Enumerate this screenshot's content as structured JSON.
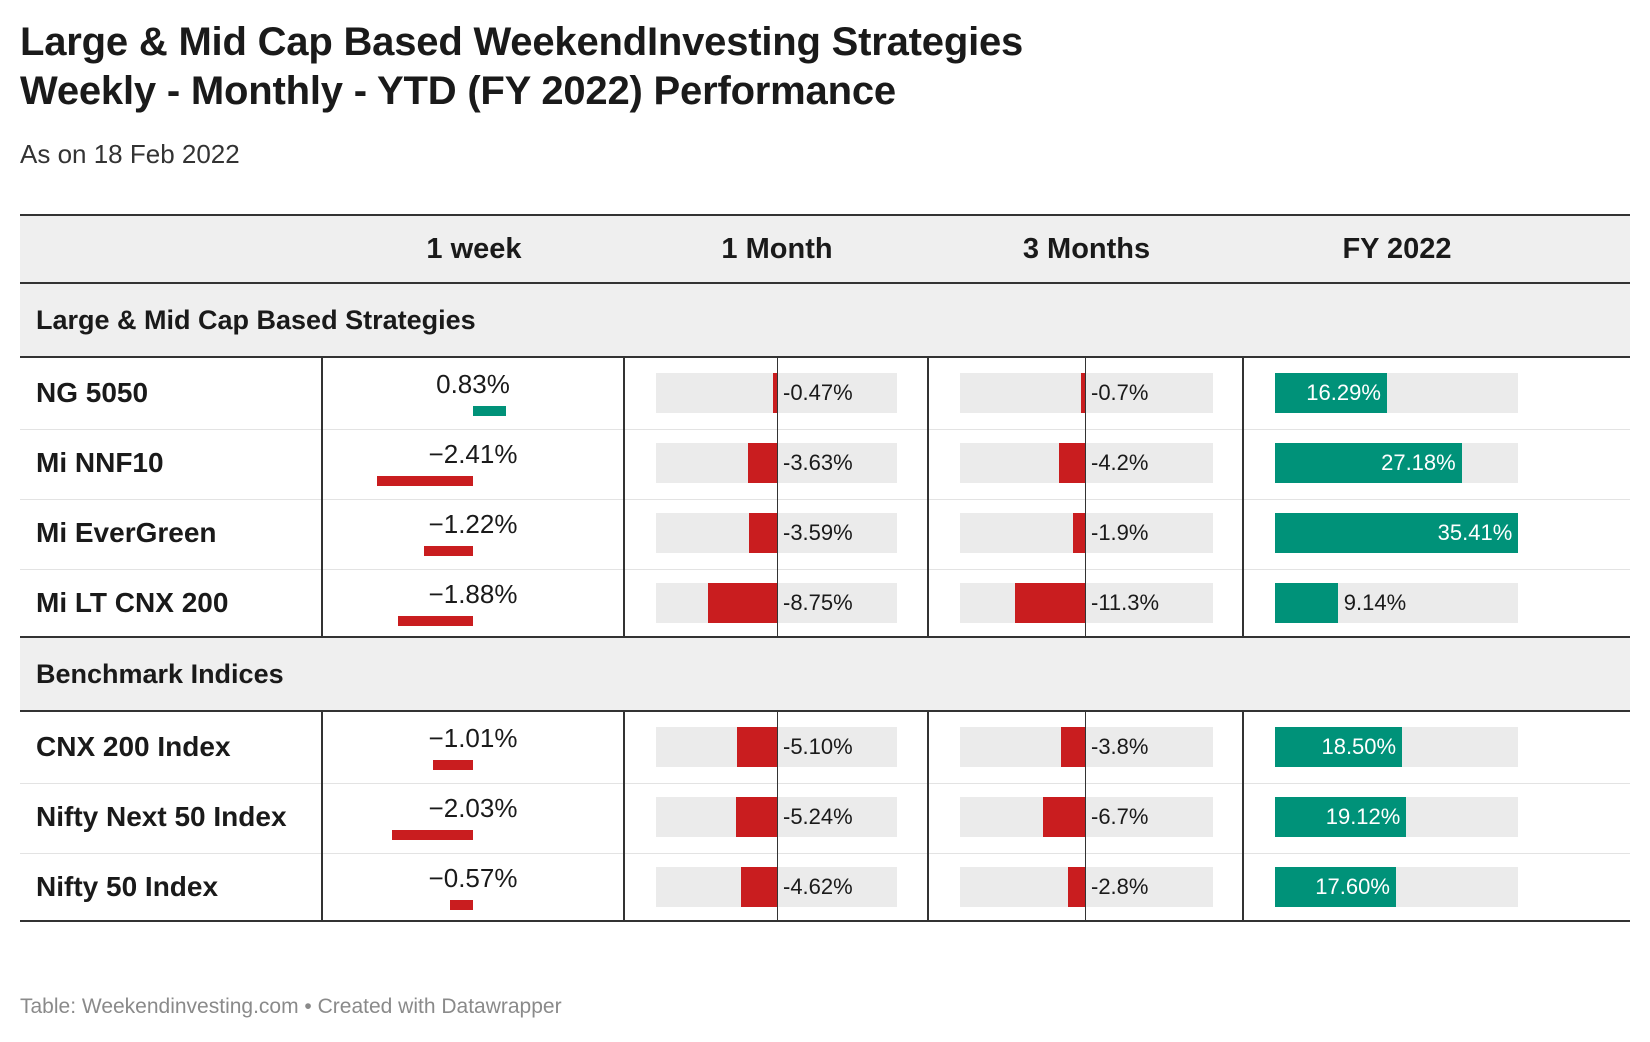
{
  "title_line1": "Large & Mid Cap Based WeekendInvesting Strategies",
  "title_line2": "Weekly - Monthly - YTD (FY 2022) Performance",
  "subtitle": "As on 18 Feb 2022",
  "footer": "Table: Weekendinvesting.com • Created with Datawrapper",
  "colors": {
    "negative": "#c91d1f",
    "positive": "#009279",
    "bar_background": "#ebebeb",
    "header_background": "#efefef"
  },
  "chart_data": {
    "type": "table",
    "columns": [
      "1 week",
      "1 Month",
      "3 Months",
      "FY 2022"
    ],
    "groups": [
      {
        "name": "Large & Mid Cap Based Strategies",
        "rows": [
          {
            "name": "NG 5050",
            "week": 0.83,
            "week_label": "0.83%",
            "month": -0.47,
            "month_label": "-0.47%",
            "three_months": -0.7,
            "three_months_label": "-0.7%",
            "fy": 16.29,
            "fy_label": "16.29%"
          },
          {
            "name": "Mi NNF10",
            "week": -2.41,
            "week_label": "−2.41%",
            "month": -3.63,
            "month_label": "-3.63%",
            "three_months": -4.2,
            "three_months_label": "-4.2%",
            "fy": 27.18,
            "fy_label": "27.18%"
          },
          {
            "name": "Mi EverGreen",
            "week": -1.22,
            "week_label": "−1.22%",
            "month": -3.59,
            "month_label": "-3.59%",
            "three_months": -1.9,
            "three_months_label": "-1.9%",
            "fy": 35.41,
            "fy_label": "35.41%"
          },
          {
            "name": "Mi LT CNX 200",
            "week": -1.88,
            "week_label": "−1.88%",
            "month": -8.75,
            "month_label": "-8.75%",
            "three_months": -11.3,
            "three_months_label": "-11.3%",
            "fy": 9.14,
            "fy_label": "9.14%"
          }
        ]
      },
      {
        "name": "Benchmark Indices",
        "rows": [
          {
            "name": "CNX 200 Index",
            "week": -1.01,
            "week_label": "−1.01%",
            "month": -5.1,
            "month_label": "-5.10%",
            "three_months": -3.8,
            "three_months_label": "-3.8%",
            "fy": 18.5,
            "fy_label": "18.50%"
          },
          {
            "name": "Nifty Next 50 Index",
            "week": -2.03,
            "week_label": "−2.03%",
            "month": -5.24,
            "month_label": "-5.24%",
            "three_months": -6.7,
            "three_months_label": "-6.7%",
            "fy": 19.12,
            "fy_label": "19.12%"
          },
          {
            "name": "Nifty 50 Index",
            "week": -0.57,
            "week_label": "−0.57%",
            "month": -4.62,
            "month_label": "-4.62%",
            "three_months": -2.8,
            "three_months_label": "-2.8%",
            "fy": 17.6,
            "fy_label": "17.60%"
          }
        ]
      }
    ]
  }
}
